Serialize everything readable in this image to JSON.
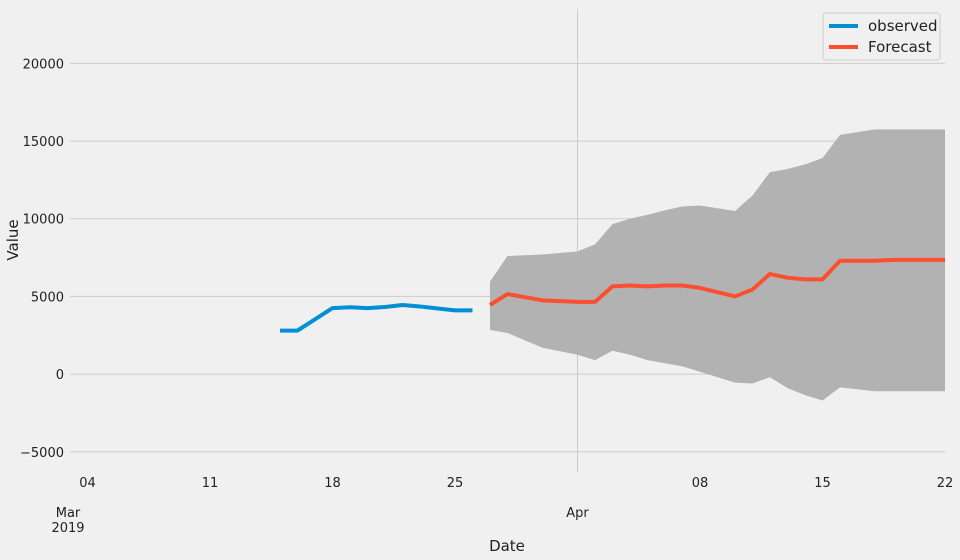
{
  "chart_data": {
    "type": "line",
    "title": "",
    "xlabel": "Date",
    "ylabel": "Value",
    "xlim": [
      "2019-03-03",
      "2019-04-22"
    ],
    "ylim": [
      -6300,
      23500
    ],
    "grid": true,
    "legend_position": "top-right",
    "y_ticks": [
      -5000,
      0,
      5000,
      10000,
      15000,
      20000
    ],
    "y_tick_labels": [
      "−5000",
      "0",
      "5000",
      "10000",
      "15000",
      "20000"
    ],
    "x_ticks": [
      {
        "date": "2019-03-04",
        "label": "04"
      },
      {
        "date": "2019-03-11",
        "label": "11"
      },
      {
        "date": "2019-03-18",
        "label": "18"
      },
      {
        "date": "2019-03-25",
        "label": "25"
      },
      {
        "date": "2019-04-08",
        "label": "08"
      },
      {
        "date": "2019-04-15",
        "label": "15"
      },
      {
        "date": "2019-04-22",
        "label": "22"
      }
    ],
    "major_ticks": [
      {
        "date": "2019-03-01",
        "label": "Mar",
        "sublabel": "2019"
      },
      {
        "date": "2019-04-01",
        "label": "Apr",
        "sublabel": ""
      }
    ],
    "series": [
      {
        "name": "observed",
        "color": "#008fd5",
        "x": [
          "2019-03-15",
          "2019-03-16",
          "2019-03-18",
          "2019-03-19",
          "2019-03-20",
          "2019-03-21",
          "2019-03-22",
          "2019-03-23",
          "2019-03-25",
          "2019-03-26"
        ],
        "y": [
          2800,
          2800,
          4250,
          4300,
          4250,
          4320,
          4450,
          4350,
          4100,
          4100
        ]
      },
      {
        "name": "Forecast",
        "color": "#fc4f30",
        "x": [
          "2019-03-27",
          "2019-03-28",
          "2019-03-30",
          "2019-04-01",
          "2019-04-02",
          "2019-04-03",
          "2019-04-04",
          "2019-04-05",
          "2019-04-06",
          "2019-04-07",
          "2019-04-08",
          "2019-04-10",
          "2019-04-11",
          "2019-04-12",
          "2019-04-13",
          "2019-04-14",
          "2019-04-15",
          "2019-04-16",
          "2019-04-18",
          "2019-04-19",
          "2019-04-20",
          "2019-04-22"
        ],
        "y": [
          4450,
          5150,
          4750,
          4650,
          4650,
          5650,
          5700,
          5650,
          5700,
          5700,
          5550,
          5000,
          5450,
          6450,
          6200,
          6100,
          6100,
          7300,
          7300,
          7350,
          7350,
          7350
        ]
      }
    ],
    "forecast_interval": {
      "color": "#b2b2b2",
      "x": [
        "2019-03-27",
        "2019-03-28",
        "2019-03-30",
        "2019-04-01",
        "2019-04-02",
        "2019-04-03",
        "2019-04-04",
        "2019-04-05",
        "2019-04-06",
        "2019-04-07",
        "2019-04-08",
        "2019-04-10",
        "2019-04-11",
        "2019-04-12",
        "2019-04-13",
        "2019-04-14",
        "2019-04-15",
        "2019-04-16",
        "2019-04-18",
        "2019-04-19",
        "2019-04-20",
        "2019-04-22"
      ],
      "lower": [
        2850,
        2650,
        1700,
        1250,
        900,
        1500,
        1250,
        900,
        700,
        500,
        150,
        -550,
        -600,
        -200,
        -900,
        -1350,
        -1700,
        -850,
        -1100,
        -1100,
        -1100,
        -1100
      ],
      "upper": [
        5950,
        7600,
        7700,
        7900,
        8350,
        9650,
        10000,
        10250,
        10550,
        10800,
        10850,
        10500,
        11500,
        13000,
        13200,
        13500,
        13900,
        15400,
        15750,
        15750,
        15750,
        15750
      ]
    }
  }
}
